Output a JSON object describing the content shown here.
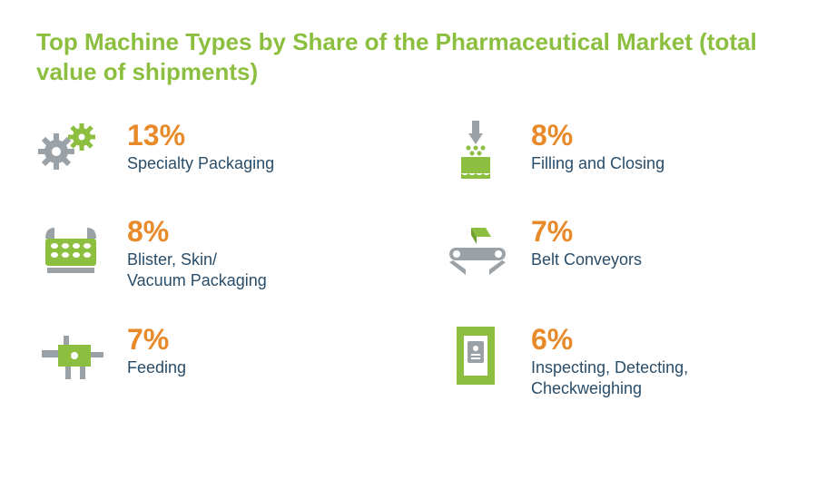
{
  "title": "Top Machine Types by Share of the Pharmaceutical Market (total value of shipments)",
  "colors": {
    "title": "#8cbf3f",
    "percent": "#e88a2a",
    "label": "#2a4d69",
    "icon_primary": "#8cbf3f",
    "icon_secondary": "#9aa2a8",
    "background": "#ffffff"
  },
  "typography": {
    "title_fontsize": 26,
    "percent_fontsize": 32,
    "label_fontsize": 18,
    "font_family": "Helvetica Neue, Arial, sans-serif"
  },
  "layout": {
    "columns": 2,
    "rows": 3,
    "row_gap": 34,
    "col_gap": 70
  },
  "items": [
    {
      "percent": "13%",
      "label": "Specialty Packaging",
      "icon": "gears"
    },
    {
      "percent": "8%",
      "label": "Filling and Closing",
      "icon": "filler"
    },
    {
      "percent": "8%",
      "label": "Blister, Skin/\nVacuum Packaging",
      "icon": "blister"
    },
    {
      "percent": "7%",
      "label": "Belt Conveyors",
      "icon": "conveyor"
    },
    {
      "percent": "7%",
      "label": "Feeding",
      "icon": "feeder"
    },
    {
      "percent": "6%",
      "label": "Inspecting, Detecting,\nCheckweighing",
      "icon": "inspect"
    }
  ]
}
